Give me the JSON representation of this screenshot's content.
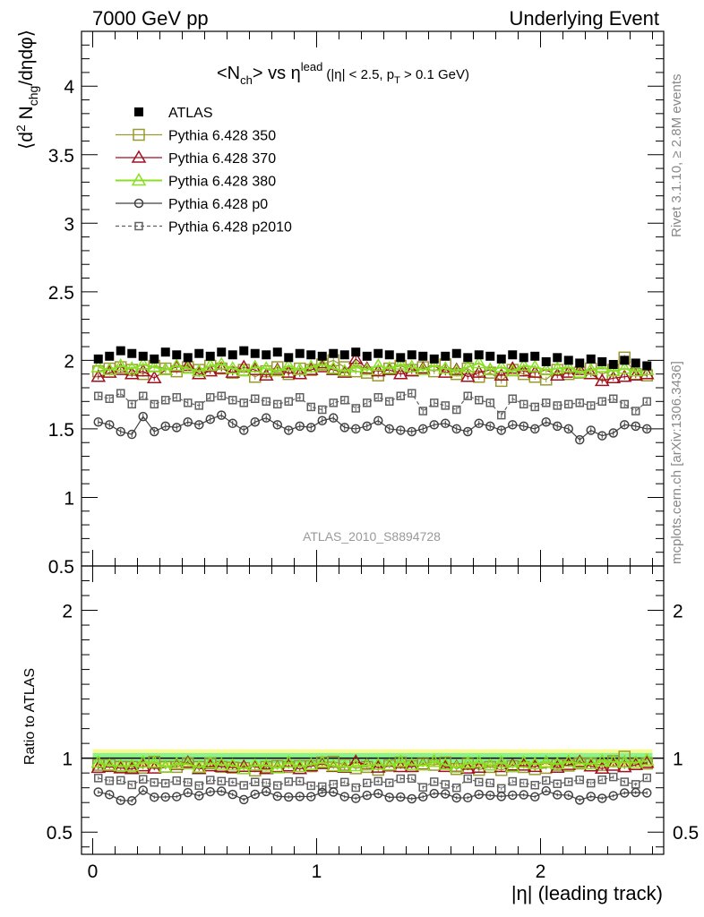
{
  "header": {
    "left": "7000 GeV pp",
    "right": "Underlying Event"
  },
  "title": {
    "main": "<N",
    "main_sub": "ch",
    "main_mid": "> vs η",
    "main_sup": "lead",
    "cut1": "(|η| < 2.5, p",
    "cut_sub": "T",
    "cut2": " > 0.1 GeV)"
  },
  "side": {
    "rivet": "Rivet 3.1.10, ≥ 2.8M events",
    "mcplots": "mcplots.cern.ch [arXiv:1306.3436]"
  },
  "watermark": "ATLAS_2010_S8894728",
  "colors": {
    "atlas": "#000000",
    "p350": "#9a9a30",
    "p370": "#a01020",
    "p380": "#88e020",
    "p0": "#404040",
    "p2010": "#606060",
    "band_inner": "#8cf28c",
    "band_outer": "#f8f890"
  },
  "chart_data": [
    {
      "type": "scatter",
      "panel": "main",
      "ylabel": "⟨d² N_chg/dηdφ⟩",
      "xlim": [
        -0.05,
        2.55
      ],
      "ylim": [
        0.5,
        4.4
      ],
      "yticks": [
        "0.5",
        "1",
        "1.5",
        "2",
        "2.5",
        "3",
        "3.5",
        "4"
      ],
      "x": [
        0.025,
        0.075,
        0.125,
        0.175,
        0.225,
        0.275,
        0.325,
        0.375,
        0.425,
        0.475,
        0.525,
        0.575,
        0.625,
        0.675,
        0.725,
        0.775,
        0.825,
        0.875,
        0.925,
        0.975,
        1.025,
        1.075,
        1.125,
        1.175,
        1.225,
        1.275,
        1.325,
        1.375,
        1.425,
        1.475,
        1.525,
        1.575,
        1.625,
        1.675,
        1.725,
        1.775,
        1.825,
        1.875,
        1.925,
        1.975,
        2.025,
        2.075,
        2.125,
        2.175,
        2.225,
        2.275,
        2.325,
        2.375,
        2.425,
        2.475
      ],
      "legend": [
        "ATLAS",
        "Pythia 6.428 350",
        "Pythia 6.428 370",
        "Pythia 6.428 380",
        "Pythia 6.428 p0",
        "Pythia 6.428 p2010"
      ],
      "series": [
        {
          "name": "ATLAS",
          "values": [
            2.01,
            2.03,
            2.07,
            2.05,
            2.03,
            2.01,
            2.06,
            2.04,
            2.02,
            2.05,
            2.03,
            2.06,
            2.04,
            2.07,
            2.05,
            2.04,
            2.06,
            2.02,
            2.05,
            2.04,
            2.03,
            2.05,
            2.04,
            2.06,
            2.03,
            2.05,
            2.04,
            2.02,
            2.04,
            2.03,
            2.01,
            2.03,
            2.05,
            2.02,
            2.04,
            2.03,
            2.01,
            2.04,
            2.02,
            2.03,
            1.99,
            2.02,
            2.0,
            1.98,
            2.01,
            1.99,
            1.97,
            2.0,
            1.98,
            1.96
          ]
        },
        {
          "name": "Pythia 6.428 350",
          "values": [
            1.92,
            1.94,
            1.95,
            1.93,
            1.9,
            1.96,
            1.94,
            1.92,
            1.95,
            1.93,
            1.96,
            1.94,
            1.91,
            1.93,
            1.88,
            1.92,
            1.95,
            1.9,
            1.94,
            1.93,
            1.97,
            2.0,
            1.95,
            1.92,
            1.91,
            1.89,
            1.94,
            1.96,
            1.93,
            1.95,
            1.92,
            1.97,
            1.9,
            1.94,
            1.88,
            1.91,
            1.85,
            1.93,
            1.9,
            1.88,
            1.86,
            1.93,
            1.9,
            1.91,
            1.94,
            1.9,
            1.93,
            2.02,
            1.9,
            1.89
          ]
        },
        {
          "name": "Pythia 6.428 370",
          "values": [
            1.88,
            1.91,
            1.93,
            1.9,
            1.92,
            1.87,
            1.93,
            1.95,
            1.96,
            1.9,
            1.92,
            1.94,
            1.91,
            1.95,
            1.93,
            1.89,
            1.93,
            1.91,
            1.9,
            1.93,
            1.95,
            1.93,
            1.91,
            2.01,
            1.94,
            1.92,
            1.93,
            1.9,
            1.92,
            1.94,
            1.96,
            1.91,
            1.93,
            1.88,
            1.91,
            1.93,
            1.89,
            1.94,
            1.92,
            1.91,
            1.93,
            1.89,
            1.91,
            1.93,
            1.9,
            1.85,
            1.87,
            1.88,
            1.89,
            1.9
          ]
        },
        {
          "name": "Pythia 6.428 380",
          "values": [
            1.95,
            1.93,
            1.96,
            1.94,
            1.97,
            1.95,
            1.93,
            1.96,
            1.94,
            1.92,
            1.96,
            1.97,
            1.94,
            1.92,
            1.95,
            1.94,
            1.92,
            1.96,
            1.93,
            1.95,
            1.97,
            1.94,
            1.92,
            1.95,
            1.93,
            1.96,
            1.94,
            1.97,
            1.95,
            1.93,
            1.96,
            1.94,
            1.92,
            1.95,
            1.98,
            1.93,
            1.95,
            1.92,
            1.96,
            1.95,
            1.93,
            1.94,
            1.95,
            1.91,
            1.93,
            1.95,
            1.92,
            1.94,
            1.92,
            1.93
          ]
        },
        {
          "name": "Pythia 6.428 p0",
          "values": [
            1.55,
            1.53,
            1.48,
            1.46,
            1.59,
            1.48,
            1.52,
            1.51,
            1.55,
            1.53,
            1.57,
            1.6,
            1.54,
            1.49,
            1.55,
            1.58,
            1.53,
            1.49,
            1.52,
            1.51,
            1.56,
            1.58,
            1.51,
            1.5,
            1.52,
            1.56,
            1.5,
            1.49,
            1.48,
            1.5,
            1.53,
            1.54,
            1.5,
            1.48,
            1.54,
            1.52,
            1.49,
            1.53,
            1.52,
            1.5,
            1.55,
            1.52,
            1.5,
            1.42,
            1.49,
            1.45,
            1.47,
            1.53,
            1.52,
            1.5
          ]
        },
        {
          "name": "Pythia 6.428 p2010",
          "values": [
            1.74,
            1.72,
            1.76,
            1.68,
            1.74,
            1.68,
            1.71,
            1.73,
            1.69,
            1.67,
            1.73,
            1.74,
            1.71,
            1.69,
            1.72,
            1.7,
            1.68,
            1.7,
            1.73,
            1.66,
            1.64,
            1.69,
            1.71,
            1.65,
            1.69,
            1.73,
            1.7,
            1.74,
            1.76,
            1.63,
            1.69,
            1.67,
            1.64,
            1.74,
            1.71,
            1.69,
            1.6,
            1.72,
            1.68,
            1.66,
            1.69,
            1.67,
            1.68,
            1.69,
            1.67,
            1.7,
            1.72,
            1.68,
            1.63,
            1.7
          ]
        }
      ]
    },
    {
      "type": "scatter",
      "panel": "ratio",
      "xlabel": "|η| (leading track)",
      "ylabel": "Ratio to ATLAS",
      "xlim": [
        -0.05,
        2.55
      ],
      "ylim": [
        0.35,
        2.3
      ],
      "xticks": [
        "0",
        "1",
        "2"
      ],
      "yticks": [
        "0.5",
        "1",
        "2"
      ],
      "band_inner": 0.035,
      "band_outer": 0.06
    }
  ]
}
